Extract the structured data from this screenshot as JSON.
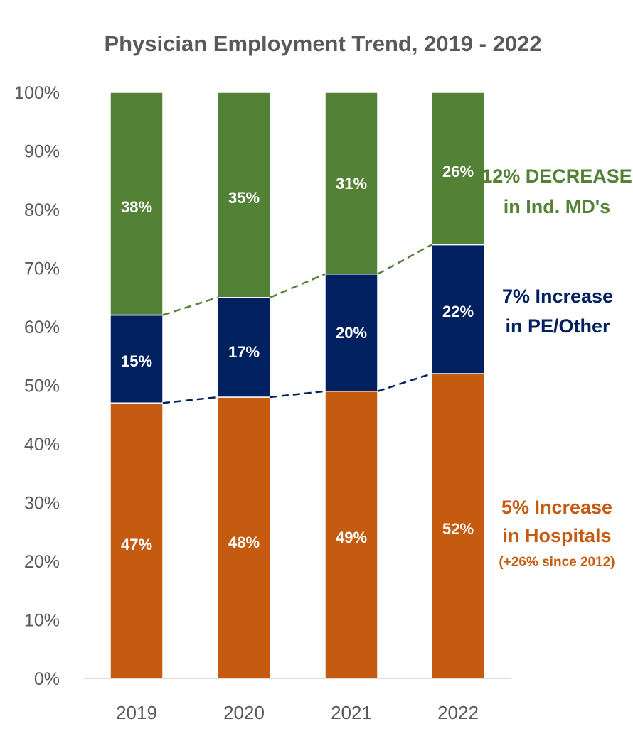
{
  "chart_data": {
    "type": "bar",
    "stacked": true,
    "title": "Physician Employment Trend, 2019 - 2022",
    "xlabel": "",
    "ylabel": "",
    "categories": [
      "2019",
      "2020",
      "2021",
      "2022"
    ],
    "ylim": [
      0,
      100
    ],
    "yticks": [
      0,
      10,
      20,
      30,
      40,
      50,
      60,
      70,
      80,
      90,
      100
    ],
    "ytick_labels": [
      "0%",
      "10%",
      "20%",
      "30%",
      "40%",
      "50%",
      "60%",
      "70%",
      "80%",
      "90%",
      "100%"
    ],
    "grid": false,
    "legend": "none",
    "series": [
      {
        "values": [
          47,
          48,
          49,
          52
        ],
        "labels": [
          "47%",
          "48%",
          "49%",
          "52%"
        ],
        "color": "#c55a11"
      },
      {
        "values": [
          15,
          17,
          20,
          22
        ],
        "labels": [
          "15%",
          "17%",
          "20%",
          "22%"
        ],
        "color": "#002060"
      },
      {
        "values": [
          38,
          35,
          31,
          26
        ],
        "labels": [
          "38%",
          "35%",
          "31%",
          "26%"
        ],
        "color": "#538135"
      }
    ],
    "annotations": [
      {
        "lines": [
          "12% DECREASE",
          "in Ind. MD's"
        ],
        "color": "#538135"
      },
      {
        "lines": [
          "7% Increase",
          "in PE/Other"
        ],
        "color": "#002060"
      },
      {
        "lines": [
          "5% Increase",
          "in Hospitals"
        ],
        "note": "(+26% since 2012)",
        "color": "#c55a11"
      }
    ]
  }
}
